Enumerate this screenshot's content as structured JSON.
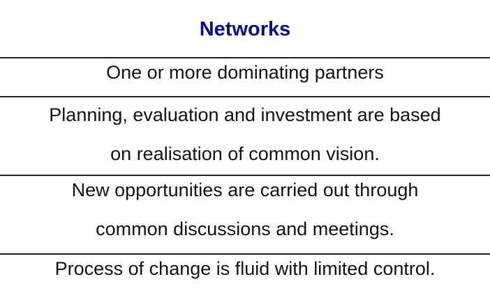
{
  "title": "Networks",
  "title_color": "#0a0a8c",
  "rows": [
    {
      "lines": [
        "One or more dominating partners"
      ]
    },
    {
      "lines": [
        "Planning, evaluation and investment are based",
        "on realisation of common vision."
      ]
    },
    {
      "lines": [
        "New opportunities are carried out through",
        "common discussions and meetings."
      ]
    },
    {
      "lines": [
        "Process of change is fluid with limited control."
      ]
    }
  ]
}
